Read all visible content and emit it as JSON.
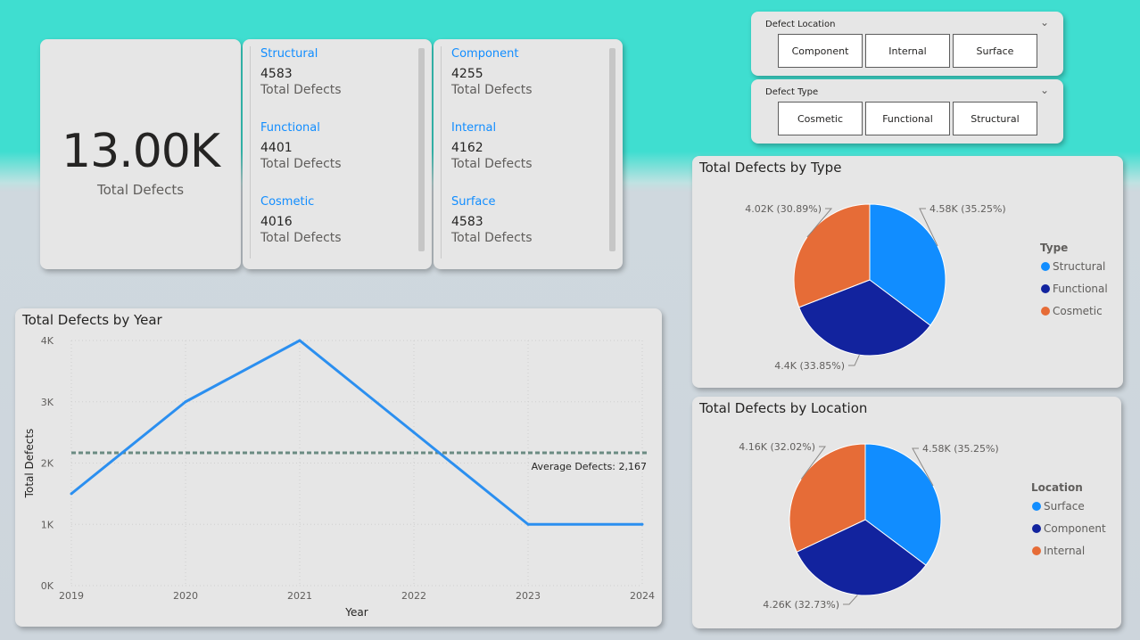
{
  "kpi": {
    "value": "13.00K",
    "label": "Total Defects"
  },
  "type_card": {
    "rows": [
      {
        "category": "Structural",
        "value": "4583",
        "label": "Total Defects"
      },
      {
        "category": "Functional",
        "value": "4401",
        "label": "Total Defects"
      },
      {
        "category": "Cosmetic",
        "value": "4016",
        "label": "Total Defects"
      }
    ]
  },
  "location_card": {
    "rows": [
      {
        "category": "Component",
        "value": "4255",
        "label": "Total Defects"
      },
      {
        "category": "Internal",
        "value": "4162",
        "label": "Total Defects"
      },
      {
        "category": "Surface",
        "value": "4583",
        "label": "Total Defects"
      }
    ]
  },
  "slicer_location": {
    "title": "Defect Location",
    "options": [
      "Component",
      "Internal",
      "Surface"
    ]
  },
  "slicer_type": {
    "title": "Defect Type",
    "options": [
      "Cosmetic",
      "Functional",
      "Structural"
    ]
  },
  "icons": {
    "slicer_chevron": "chevron-down-icon"
  },
  "colors": {
    "accent": "#118dff",
    "dark_blue": "#12239e",
    "orange": "#e66c37",
    "line": "#2b8ff0",
    "avg_line": "#6b8b83"
  },
  "chart_data": [
    {
      "type": "line",
      "title": "Total Defects by Year",
      "xlabel": "Year",
      "ylabel": "Total Defects",
      "x": [
        "2019",
        "2020",
        "2021",
        "2022",
        "2023",
        "2024"
      ],
      "series": [
        {
          "values": [
            1500,
            3000,
            4000,
            2500,
            1000,
            1000
          ]
        }
      ],
      "ylim": [
        0,
        4000
      ],
      "y_ticks": [
        "0K",
        "1K",
        "2K",
        "3K",
        "4K"
      ],
      "grid": true,
      "reference_line": {
        "label": "Average Defects: 2,167",
        "value": 2167
      }
    },
    {
      "type": "pie",
      "title": "Total Defects by Type",
      "legend_title": "Type",
      "legend_position": "right",
      "slices": [
        {
          "name": "Structural",
          "value": 4583,
          "label": "4.58K (35.25%)",
          "color": "#118dff"
        },
        {
          "name": "Functional",
          "value": 4401,
          "label": "4.4K (33.85%)",
          "color": "#12239e"
        },
        {
          "name": "Cosmetic",
          "value": 4016,
          "label": "4.02K (30.89%)",
          "color": "#e66c37"
        }
      ]
    },
    {
      "type": "pie",
      "title": "Total Defects by Location",
      "legend_title": "Location",
      "legend_position": "right",
      "slices": [
        {
          "name": "Surface",
          "value": 4583,
          "label": "4.58K (35.25%)",
          "color": "#118dff"
        },
        {
          "name": "Component",
          "value": 4255,
          "label": "4.26K (32.73%)",
          "color": "#12239e"
        },
        {
          "name": "Internal",
          "value": 4162,
          "label": "4.16K (32.02%)",
          "color": "#e66c37"
        }
      ]
    }
  ]
}
